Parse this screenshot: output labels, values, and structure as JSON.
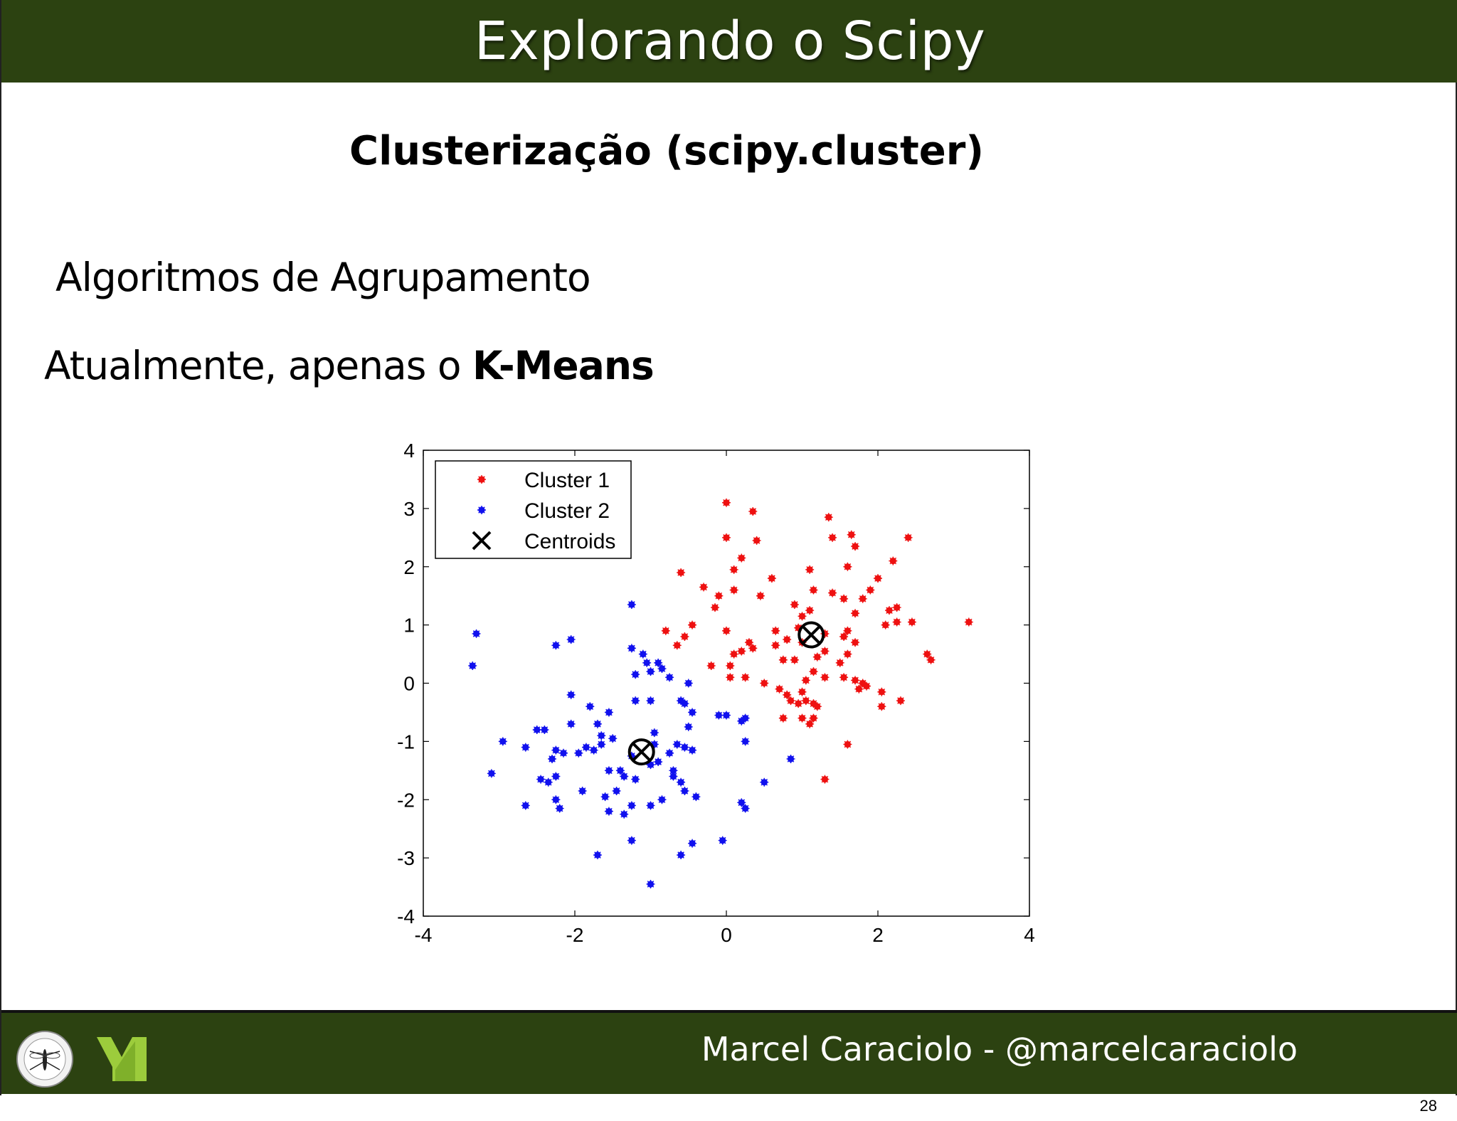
{
  "header": {
    "title": "Explorando o Scipy"
  },
  "subtitle": "Clusterização (scipy.cluster)",
  "bullets": {
    "line1": "Algoritmos de Agrupamento",
    "line2_prefix": "Atualmente, apenas o ",
    "line2_bold": "K-Means"
  },
  "footer": {
    "author": "Marcel Caraciolo - @marcelcaraciolo"
  },
  "page_number": "28",
  "colors": {
    "bar": "#2c4211",
    "cluster1": "#ee1111",
    "cluster2": "#1111ee"
  },
  "chart_data": {
    "type": "scatter",
    "xlim": [
      -4,
      4
    ],
    "ylim": [
      -4,
      4
    ],
    "xticks": [
      "-4",
      "-2",
      "0",
      "2",
      "4"
    ],
    "yticks": [
      "4",
      "3",
      "2",
      "1",
      "0",
      "-1",
      "-2",
      "-3",
      "-4"
    ],
    "grid": false,
    "legend_position": "top-left",
    "legend": [
      "Cluster 1",
      "Cluster 2",
      "Centroids"
    ],
    "series": [
      {
        "name": "Cluster 1",
        "color": "#ee1111",
        "points": [
          [
            0.0,
            3.1
          ],
          [
            0.35,
            2.95
          ],
          [
            0.0,
            2.5
          ],
          [
            0.4,
            2.45
          ],
          [
            0.2,
            2.15
          ],
          [
            0.1,
            1.95
          ],
          [
            -0.6,
            1.9
          ],
          [
            0.6,
            1.8
          ],
          [
            -0.3,
            1.65
          ],
          [
            0.1,
            1.6
          ],
          [
            0.45,
            1.5
          ],
          [
            -0.1,
            1.5
          ],
          [
            -0.15,
            1.3
          ],
          [
            -0.45,
            1.0
          ],
          [
            -0.8,
            0.9
          ],
          [
            -0.55,
            0.8
          ],
          [
            0.0,
            0.9
          ],
          [
            -0.65,
            0.65
          ],
          [
            0.3,
            0.7
          ],
          [
            0.2,
            0.55
          ],
          [
            0.35,
            0.6
          ],
          [
            0.1,
            0.5
          ],
          [
            -0.2,
            0.3
          ],
          [
            0.05,
            0.3
          ],
          [
            0.05,
            0.1
          ],
          [
            0.25,
            0.1
          ],
          [
            0.65,
            0.9
          ],
          [
            0.65,
            0.65
          ],
          [
            0.75,
            0.4
          ],
          [
            0.9,
            1.35
          ],
          [
            0.95,
            0.95
          ],
          [
            1.0,
            1.15
          ],
          [
            1.1,
            1.25
          ],
          [
            1.15,
            1.6
          ],
          [
            1.1,
            1.95
          ],
          [
            1.35,
            2.85
          ],
          [
            1.4,
            2.5
          ],
          [
            1.65,
            2.55
          ],
          [
            1.7,
            2.35
          ],
          [
            1.6,
            2.0
          ],
          [
            2.0,
            1.8
          ],
          [
            2.2,
            2.1
          ],
          [
            2.4,
            2.5
          ],
          [
            1.4,
            1.55
          ],
          [
            1.55,
            1.45
          ],
          [
            1.8,
            1.45
          ],
          [
            1.9,
            1.6
          ],
          [
            1.7,
            1.2
          ],
          [
            2.15,
            1.25
          ],
          [
            2.25,
            1.3
          ],
          [
            2.1,
            1.0
          ],
          [
            2.25,
            1.05
          ],
          [
            2.45,
            1.05
          ],
          [
            2.65,
            0.5
          ],
          [
            2.7,
            0.4
          ],
          [
            3.2,
            1.05
          ],
          [
            1.3,
            0.85
          ],
          [
            1.3,
            0.55
          ],
          [
            1.55,
            0.8
          ],
          [
            1.6,
            0.9
          ],
          [
            1.7,
            0.7
          ],
          [
            1.5,
            0.35
          ],
          [
            1.55,
            0.1
          ],
          [
            1.7,
            0.05
          ],
          [
            1.8,
            0.0
          ],
          [
            1.85,
            -0.05
          ],
          [
            1.75,
            -0.1
          ],
          [
            2.05,
            -0.15
          ],
          [
            2.3,
            -0.3
          ],
          [
            2.05,
            -0.4
          ],
          [
            1.6,
            -1.05
          ],
          [
            1.3,
            -1.65
          ],
          [
            1.15,
            0.2
          ],
          [
            1.3,
            0.1
          ],
          [
            1.05,
            0.05
          ],
          [
            0.7,
            -0.1
          ],
          [
            0.8,
            -0.2
          ],
          [
            0.85,
            -0.3
          ],
          [
            1.0,
            -0.15
          ],
          [
            1.05,
            -0.3
          ],
          [
            1.15,
            -0.35
          ],
          [
            1.2,
            -0.4
          ],
          [
            0.95,
            -0.35
          ],
          [
            0.75,
            -0.6
          ],
          [
            1.0,
            -0.6
          ],
          [
            1.15,
            -0.6
          ],
          [
            1.1,
            -0.7
          ],
          [
            0.9,
            0.4
          ],
          [
            0.5,
            0.0
          ],
          [
            0.8,
            0.75
          ],
          [
            1.0,
            0.7
          ],
          [
            1.2,
            0.45
          ],
          [
            1.6,
            0.5
          ]
        ]
      },
      {
        "name": "Cluster 2",
        "color": "#1111ee",
        "points": [
          [
            -3.3,
            0.85
          ],
          [
            -3.35,
            0.3
          ],
          [
            -2.25,
            0.65
          ],
          [
            -2.05,
            0.75
          ],
          [
            -1.25,
            1.35
          ],
          [
            -1.25,
            0.6
          ],
          [
            -1.1,
            0.5
          ],
          [
            -1.05,
            0.35
          ],
          [
            -0.9,
            0.35
          ],
          [
            -0.85,
            0.25
          ],
          [
            -1.0,
            0.2
          ],
          [
            -1.2,
            0.15
          ],
          [
            -0.75,
            0.1
          ],
          [
            -0.5,
            0.0
          ],
          [
            -2.05,
            -0.2
          ],
          [
            -1.2,
            -0.3
          ],
          [
            -1.0,
            -0.3
          ],
          [
            -1.8,
            -0.4
          ],
          [
            -1.55,
            -0.5
          ],
          [
            -1.7,
            -0.7
          ],
          [
            -1.65,
            -0.9
          ],
          [
            -1.5,
            -0.95
          ],
          [
            -2.5,
            -0.8
          ],
          [
            -2.4,
            -0.8
          ],
          [
            -2.05,
            -0.7
          ],
          [
            -2.95,
            -1.0
          ],
          [
            -2.65,
            -1.1
          ],
          [
            -2.25,
            -1.15
          ],
          [
            -2.3,
            -1.3
          ],
          [
            -2.15,
            -1.2
          ],
          [
            -1.95,
            -1.2
          ],
          [
            -1.85,
            -1.1
          ],
          [
            -1.65,
            -1.05
          ],
          [
            -1.75,
            -1.15
          ],
          [
            -3.1,
            -1.55
          ],
          [
            -2.25,
            -1.6
          ],
          [
            -2.45,
            -1.65
          ],
          [
            -2.35,
            -1.7
          ],
          [
            -1.9,
            -1.85
          ],
          [
            -2.25,
            -2.0
          ],
          [
            -2.2,
            -2.15
          ],
          [
            -2.65,
            -2.1
          ],
          [
            -1.55,
            -1.5
          ],
          [
            -1.4,
            -1.5
          ],
          [
            -1.35,
            -1.6
          ],
          [
            -1.2,
            -1.65
          ],
          [
            -1.45,
            -1.85
          ],
          [
            -1.6,
            -1.95
          ],
          [
            -1.55,
            -2.2
          ],
          [
            -1.35,
            -2.25
          ],
          [
            -1.25,
            -2.1
          ],
          [
            -1.0,
            -2.1
          ],
          [
            -0.85,
            -2.0
          ],
          [
            -0.7,
            -1.6
          ],
          [
            -0.7,
            -1.5
          ],
          [
            -0.6,
            -1.7
          ],
          [
            -0.55,
            -1.85
          ],
          [
            -0.4,
            -1.95
          ],
          [
            -0.75,
            -1.2
          ],
          [
            -0.55,
            -1.1
          ],
          [
            -0.45,
            -1.15
          ],
          [
            -0.95,
            -1.05
          ],
          [
            -0.95,
            -0.85
          ],
          [
            -1.25,
            -1.25
          ],
          [
            -0.1,
            -0.55
          ],
          [
            0.0,
            -0.55
          ],
          [
            0.25,
            -0.6
          ],
          [
            0.2,
            -0.65
          ],
          [
            0.25,
            -1.0
          ],
          [
            -0.6,
            -0.3
          ],
          [
            -0.55,
            -0.35
          ],
          [
            -0.45,
            -0.5
          ],
          [
            -1.0,
            -1.4
          ],
          [
            -0.9,
            -1.35
          ],
          [
            -1.7,
            -2.95
          ],
          [
            -1.25,
            -2.7
          ],
          [
            -0.6,
            -2.95
          ],
          [
            -0.45,
            -2.75
          ],
          [
            -0.05,
            -2.7
          ],
          [
            -1.0,
            -3.45
          ],
          [
            0.2,
            -2.05
          ],
          [
            0.25,
            -2.15
          ],
          [
            0.5,
            -1.7
          ],
          [
            0.85,
            -1.3
          ],
          [
            -0.5,
            -0.75
          ],
          [
            -0.65,
            -1.05
          ]
        ]
      },
      {
        "name": "Centroids",
        "color": "#000000",
        "points": [
          [
            1.12,
            0.83
          ],
          [
            -1.12,
            -1.18
          ]
        ]
      }
    ]
  }
}
